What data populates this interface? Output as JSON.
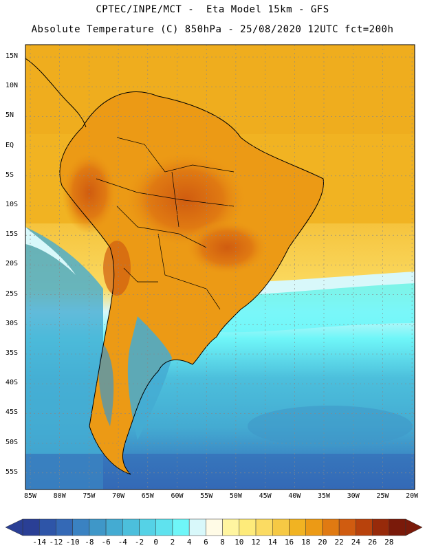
{
  "header": {
    "line1": "CPTEC/INPE/MCT -  Eta Model 15km - GFS",
    "line2": "Absolute Temperature (C) 850hPa - 25/08/2020 12UTC fct=200h"
  },
  "map": {
    "lat_labels": [
      "15N",
      "10N",
      "5N",
      "EQ",
      "5S",
      "10S",
      "15S",
      "20S",
      "25S",
      "30S",
      "35S",
      "40S",
      "45S",
      "50S",
      "55S"
    ],
    "lon_labels": [
      "85W",
      "80W",
      "75W",
      "70W",
      "65W",
      "60W",
      "55W",
      "50W",
      "45W",
      "40W",
      "35W",
      "30W",
      "25W",
      "20W"
    ]
  },
  "colorbar": {
    "labels": [
      "-14",
      "-12",
      "-10",
      "-8",
      "-6",
      "-4",
      "-2",
      "0",
      "2",
      "4",
      "6",
      "8",
      "10",
      "12",
      "14",
      "16",
      "18",
      "20",
      "22",
      "24",
      "26",
      "28"
    ],
    "colors": [
      "#2a3f95",
      "#2e55a8",
      "#3469b6",
      "#3a82c2",
      "#3f97c8",
      "#44abd2",
      "#4cbfdc",
      "#55d2e6",
      "#5fe2ee",
      "#6ff6f8",
      "#d8f8fa",
      "#fffbe6",
      "#fff5a0",
      "#feeb7a",
      "#fbdb62",
      "#f6c944",
      "#f1b322",
      "#ec9a15",
      "#e07a12",
      "#d05c10",
      "#b8420c",
      "#972a0a",
      "#7a1a0a"
    ]
  }
}
